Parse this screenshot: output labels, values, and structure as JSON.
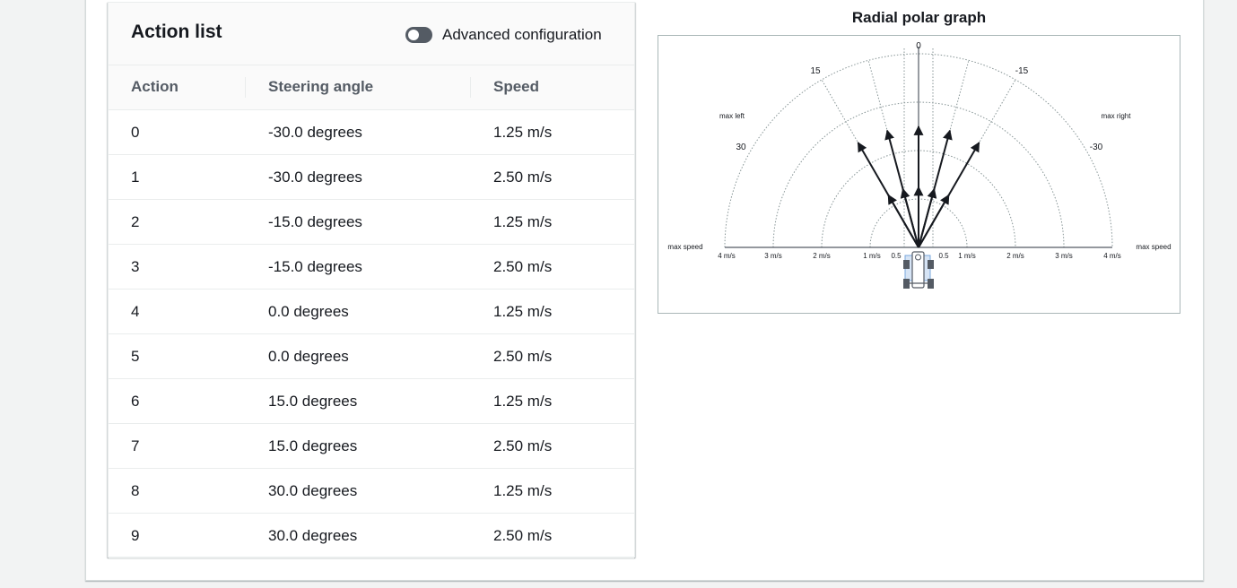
{
  "action_list": {
    "title": "Action list",
    "advanced_toggle_label": "Advanced configuration",
    "advanced_toggle_on": false,
    "columns": [
      "Action",
      "Steering angle",
      "Speed"
    ],
    "rows": [
      {
        "action": "0",
        "steering": "-30.0 degrees",
        "speed": "1.25 m/s"
      },
      {
        "action": "1",
        "steering": "-30.0 degrees",
        "speed": "2.50 m/s"
      },
      {
        "action": "2",
        "steering": "-15.0 degrees",
        "speed": "1.25 m/s"
      },
      {
        "action": "3",
        "steering": "-15.0 degrees",
        "speed": "2.50 m/s"
      },
      {
        "action": "4",
        "steering": "0.0 degrees",
        "speed": "1.25 m/s"
      },
      {
        "action": "5",
        "steering": "0.0 degrees",
        "speed": "2.50 m/s"
      },
      {
        "action": "6",
        "steering": "15.0 degrees",
        "speed": "1.25 m/s"
      },
      {
        "action": "7",
        "steering": "15.0 degrees",
        "speed": "2.50 m/s"
      },
      {
        "action": "8",
        "steering": "30.0 degrees",
        "speed": "1.25 m/s"
      },
      {
        "action": "9",
        "steering": "30.0 degrees",
        "speed": "2.50 m/s"
      }
    ]
  },
  "graph": {
    "title": "Radial polar graph",
    "angle_labels": [
      "0",
      "15",
      "-15",
      "30",
      "-30"
    ],
    "max_left_label": "max left",
    "max_right_label": "max right",
    "max_speed_label": "max speed",
    "speed_labels_left": [
      "4 m/s",
      "3 m/s",
      "2 m/s",
      "1 m/s",
      "0.5"
    ],
    "speed_labels_right": [
      "0.5",
      "1 m/s",
      "2 m/s",
      "3 m/s",
      "4 m/s"
    ],
    "colors": {
      "arrow": "#16191f",
      "grid": "#879596",
      "axis": "#545b64"
    },
    "icon": "car-icon"
  }
}
